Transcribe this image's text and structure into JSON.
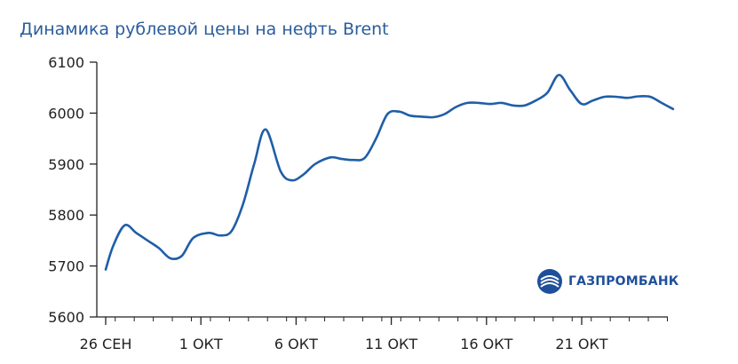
{
  "chart_data": {
    "type": "line",
    "title": "Динамика рублевой цены на нефть Brent",
    "xlabel": "",
    "ylabel": "",
    "ylim": [
      5600,
      6100
    ],
    "yticks": [
      5600,
      5700,
      5800,
      5900,
      6000,
      6100
    ],
    "xticks": [
      {
        "x": 0,
        "label": "26 СЕН"
      },
      {
        "x": 5,
        "label": "1 ОКТ"
      },
      {
        "x": 10,
        "label": "6 ОКТ"
      },
      {
        "x": 15,
        "label": "11 ОКТ"
      },
      {
        "x": 20,
        "label": "16 ОКТ"
      },
      {
        "x": 25,
        "label": "21 ОКТ"
      }
    ],
    "grid": false,
    "line_color": "#1f5ea8",
    "series": [
      {
        "x": [
          0,
          0.4,
          1.0,
          1.6,
          2.2,
          2.8,
          3.4,
          4.0,
          4.6,
          5.4,
          6.0,
          6.6,
          7.2,
          7.8,
          8.4,
          9.2,
          9.8,
          10.4,
          11.0,
          11.8,
          12.4,
          13.0,
          13.6,
          14.2,
          14.8,
          15.4,
          16.0,
          16.6,
          17.2,
          17.8,
          18.4,
          19.0,
          19.6,
          20.2,
          20.8,
          21.4,
          22.0,
          22.6,
          23.2,
          23.8,
          24.4,
          25.0,
          25.6,
          26.2,
          26.8,
          27.4,
          28.0,
          28.6,
          29.2,
          29.8
        ],
        "values": [
          5693,
          5740,
          5780,
          5765,
          5750,
          5735,
          5715,
          5720,
          5755,
          5765,
          5760,
          5768,
          5820,
          5900,
          5968,
          5885,
          5868,
          5880,
          5900,
          5913,
          5910,
          5908,
          5912,
          5950,
          5998,
          6003,
          5995,
          5993,
          5992,
          5998,
          6012,
          6020,
          6020,
          6018,
          6020,
          6015,
          6015,
          6025,
          6040,
          6075,
          6045,
          6018,
          6025,
          6032,
          6032,
          6030,
          6033,
          6032,
          6020,
          6008
        ]
      }
    ]
  },
  "logo": {
    "text": "ГАЗПРОМБАНК",
    "icon": "gazprombank-logo-icon"
  }
}
